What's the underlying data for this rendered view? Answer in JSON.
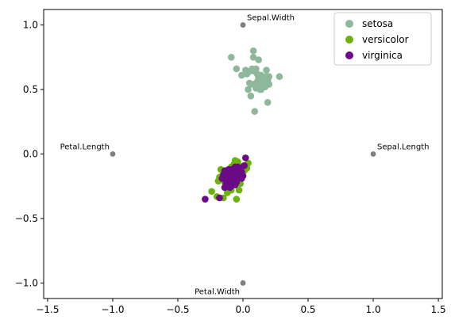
{
  "chart_data": {
    "type": "scatter",
    "title": "",
    "xlabel": "",
    "ylabel": "",
    "xlim": [
      -1.53,
      1.53
    ],
    "ylim": [
      -1.12,
      1.12
    ],
    "grid": false,
    "legend_position": "top-right",
    "x_ticks": [
      -1.5,
      -1.0,
      -0.5,
      0.0,
      0.5,
      1.0,
      1.5
    ],
    "x_tick_labels": [
      "−1.5",
      "−1.0",
      "−0.5",
      "0.0",
      "0.5",
      "1.0",
      "1.5"
    ],
    "y_ticks": [
      -1.0,
      -0.5,
      0.0,
      0.5,
      1.0
    ],
    "y_tick_labels": [
      "−1.0",
      "−0.5",
      "0.0",
      "0.5",
      "1.0"
    ],
    "anchors": [
      {
        "label": "Sepal.Length",
        "x": 1.0,
        "y": 0.0,
        "color": "#808080"
      },
      {
        "label": "Sepal.Width",
        "x": 0.0,
        "y": 1.0,
        "color": "#808080"
      },
      {
        "label": "Petal.Length",
        "x": -1.0,
        "y": 0.0,
        "color": "#808080"
      },
      {
        "label": "Petal.Width",
        "x": 0.0,
        "y": -1.0,
        "color": "#808080"
      }
    ],
    "series": [
      {
        "name": "setosa",
        "color": "#8fb89a",
        "x": [
          0.08,
          0.12,
          0.18,
          -0.09,
          0.02,
          0.05,
          0.1,
          0.15,
          0.2,
          0.28,
          -0.05,
          -0.01,
          0.03,
          0.07,
          0.11,
          0.14,
          0.17,
          0.19,
          0.09,
          0.13,
          0.16,
          0.06,
          0.04,
          0.12,
          0.15,
          0.18,
          0.08,
          0.1,
          0.13,
          0.16,
          0.19,
          0.11,
          0.14,
          0.17,
          0.07,
          0.09,
          0.12,
          0.05,
          0.08,
          0.15,
          0.18,
          0.2,
          0.14,
          0.1,
          0.06,
          0.03,
          0.16,
          0.19,
          0.13,
          0.11
        ],
        "y": [
          0.8,
          0.73,
          0.65,
          0.75,
          0.65,
          0.64,
          0.66,
          0.55,
          0.54,
          0.6,
          0.66,
          0.61,
          0.63,
          0.65,
          0.52,
          0.5,
          0.52,
          0.4,
          0.33,
          0.58,
          0.58,
          0.45,
          0.5,
          0.6,
          0.56,
          0.6,
          0.54,
          0.55,
          0.57,
          0.53,
          0.58,
          0.62,
          0.61,
          0.56,
          0.66,
          0.64,
          0.59,
          0.55,
          0.75,
          0.52,
          0.55,
          0.6,
          0.53,
          0.51,
          0.54,
          0.62,
          0.59,
          0.57,
          0.5,
          0.56
        ]
      },
      {
        "name": "versicolor",
        "color": "#6ab30b",
        "x": [
          -0.24,
          -0.2,
          -0.15,
          -0.12,
          -0.1,
          -0.08,
          -0.05,
          -0.03,
          0.02,
          0.04,
          -0.18,
          -0.16,
          -0.13,
          -0.11,
          -0.09,
          -0.07,
          -0.06,
          -0.04,
          -0.02,
          0.0,
          -0.14,
          -0.12,
          -0.1,
          -0.08,
          -0.06,
          -0.04,
          -0.02,
          -0.17,
          -0.15,
          -0.11,
          -0.09,
          -0.07,
          -0.05,
          -0.03,
          -0.01,
          0.01,
          0.03,
          -0.13,
          -0.1,
          -0.08,
          -0.06,
          -0.04,
          -0.02,
          -0.19,
          -0.16,
          -0.14,
          -0.12,
          -0.1,
          -0.08,
          -0.05
        ],
        "y": [
          -0.29,
          -0.33,
          -0.34,
          -0.3,
          -0.25,
          -0.2,
          -0.35,
          -0.28,
          -0.1,
          -0.07,
          -0.18,
          -0.2,
          -0.15,
          -0.12,
          -0.1,
          -0.08,
          -0.05,
          -0.06,
          -0.1,
          -0.12,
          -0.22,
          -0.24,
          -0.21,
          -0.18,
          -0.16,
          -0.14,
          -0.2,
          -0.12,
          -0.16,
          -0.25,
          -0.28,
          -0.22,
          -0.19,
          -0.17,
          -0.15,
          -0.13,
          -0.11,
          -0.19,
          -0.14,
          -0.12,
          -0.09,
          -0.07,
          -0.23,
          -0.21,
          -0.17,
          -0.26,
          -0.23,
          -0.15,
          -0.11,
          -0.09
        ]
      },
      {
        "name": "virginica",
        "color": "#6a0a87",
        "x": [
          -0.29,
          -0.18,
          -0.14,
          -0.12,
          -0.1,
          -0.08,
          -0.06,
          -0.04,
          -0.02,
          0.02,
          -0.16,
          -0.13,
          -0.11,
          -0.09,
          -0.07,
          -0.05,
          -0.03,
          -0.01,
          0.01,
          -0.12,
          -0.1,
          -0.08,
          -0.06,
          -0.04,
          -0.02,
          0.0,
          -0.15,
          -0.13,
          -0.11,
          -0.09,
          -0.07,
          -0.05,
          -0.03,
          -0.01,
          -0.14,
          -0.12,
          -0.1,
          -0.08,
          -0.06,
          -0.04,
          -0.02,
          -0.11,
          -0.09,
          -0.07,
          -0.05,
          -0.03,
          -0.13,
          -0.1,
          -0.08,
          -0.06
        ],
        "y": [
          -0.35,
          -0.34,
          -0.26,
          -0.22,
          -0.18,
          -0.15,
          -0.12,
          -0.1,
          -0.16,
          -0.03,
          -0.19,
          -0.17,
          -0.14,
          -0.12,
          -0.2,
          -0.22,
          -0.18,
          -0.14,
          -0.09,
          -0.24,
          -0.21,
          -0.19,
          -0.16,
          -0.13,
          -0.11,
          -0.17,
          -0.16,
          -0.2,
          -0.23,
          -0.25,
          -0.21,
          -0.15,
          -0.13,
          -0.19,
          -0.13,
          -0.18,
          -0.15,
          -0.22,
          -0.24,
          -0.19,
          -0.14,
          -0.12,
          -0.17,
          -0.2,
          -0.16,
          -0.12,
          -0.23,
          -0.26,
          -0.14,
          -0.1
        ]
      }
    ]
  }
}
